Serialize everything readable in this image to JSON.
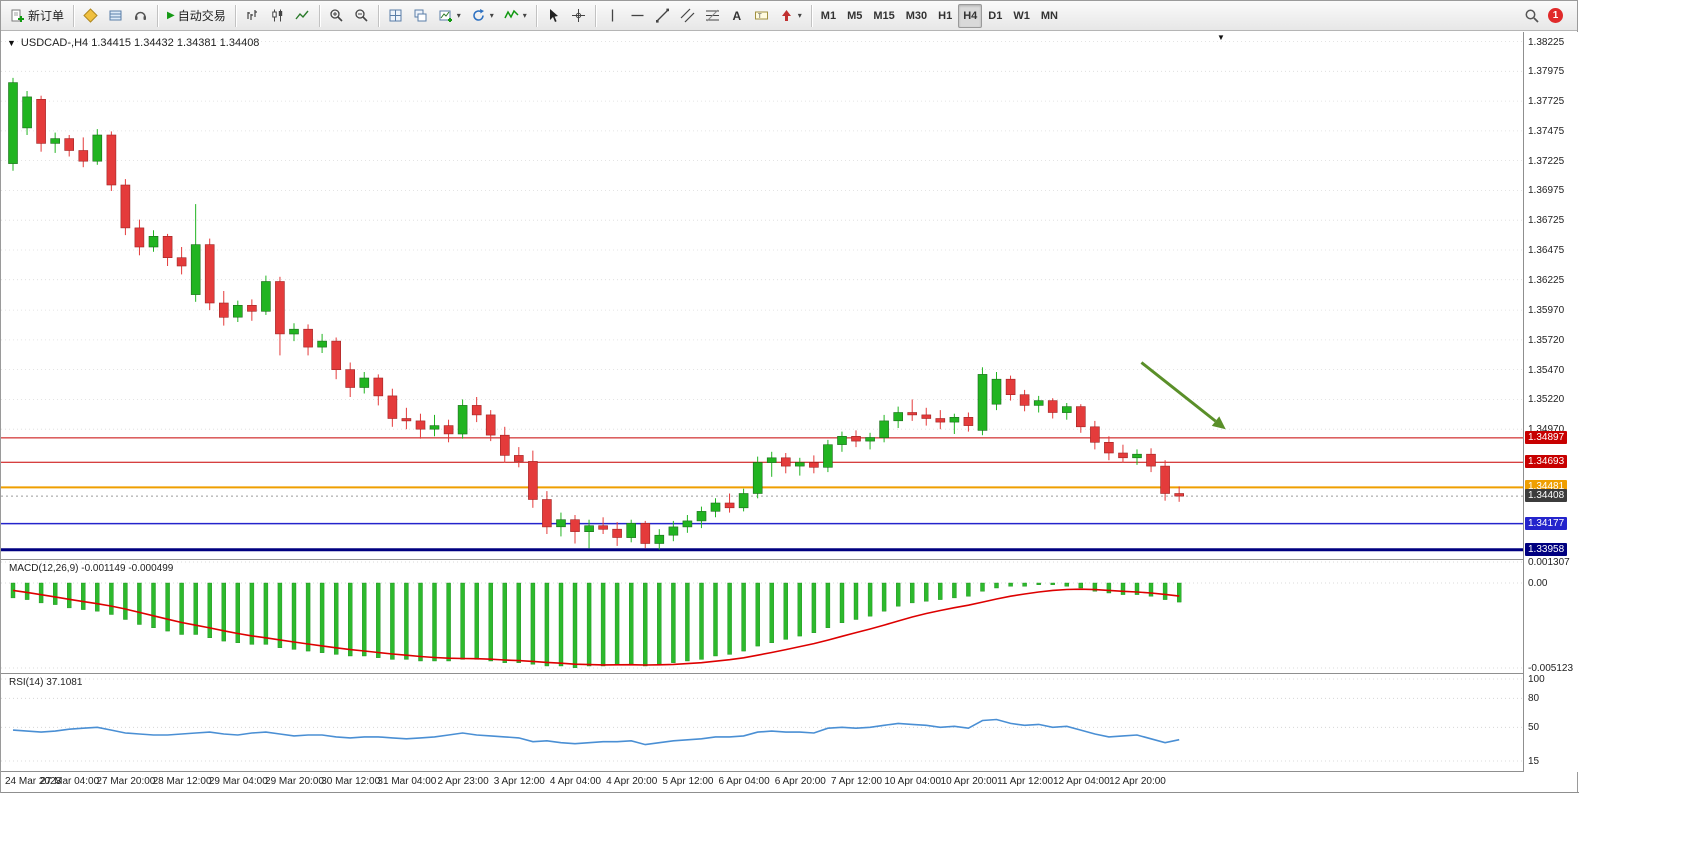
{
  "window": {
    "chart_title": "USDCAD-,H4  1.34415 1.34432 1.34381 1.34408"
  },
  "toolbar": {
    "new_order_label": "新订单",
    "autotrading_label": "自动交易",
    "timeframes": [
      "M1",
      "M5",
      "M15",
      "M30",
      "H1",
      "H4",
      "D1",
      "W1",
      "MN"
    ],
    "active_timeframe": "H4",
    "notification_count": "1"
  },
  "icons": {
    "one_click_trading": "▼",
    "chart_shift_marker": "▼",
    "dropdown_caret": "▾",
    "autotrading_play": "▶",
    "search": "magnifier-glass",
    "text_tool": "A"
  },
  "indicators": {
    "macd_label": "MACD(12,26,9) -0.001149 -0.000499",
    "rsi_label": "RSI(14) 37.1081"
  },
  "price_scale": {
    "ticks": [
      {
        "text": "1.38225",
        "value": 1.38225
      },
      {
        "text": "1.37975",
        "value": 1.37975
      },
      {
        "text": "1.37725",
        "value": 1.37725
      },
      {
        "text": "1.37475",
        "value": 1.37475
      },
      {
        "text": "1.37225",
        "value": 1.37225
      },
      {
        "text": "1.36975",
        "value": 1.36975
      },
      {
        "text": "1.36725",
        "value": 1.36725
      },
      {
        "text": "1.36475",
        "value": 1.36475
      },
      {
        "text": "1.36225",
        "value": 1.36225
      },
      {
        "text": "1.35970",
        "value": 1.3597
      },
      {
        "text": "1.35720",
        "value": 1.3572
      },
      {
        "text": "1.35470",
        "value": 1.3547
      },
      {
        "text": "1.35220",
        "value": 1.3522
      },
      {
        "text": "1.34970",
        "value": 1.3497
      }
    ],
    "line_labels": [
      {
        "text": "1.34897",
        "value": 1.34897,
        "color": "#c80000"
      },
      {
        "text": "1.34693",
        "value": 1.34693,
        "color": "#c80000"
      },
      {
        "text": "1.34481",
        "value": 1.34481,
        "color": "#ef9f00"
      },
      {
        "text": "1.34408",
        "value": 1.34408,
        "color": "#3c3c3c"
      },
      {
        "text": "1.34177",
        "value": 1.34177,
        "color": "#2424cc"
      },
      {
        "text": "1.33958",
        "value": 1.33958,
        "color": "#000080"
      }
    ]
  },
  "time_axis": {
    "labels": [
      "24 Mar 2023",
      "27 Mar 04:00",
      "27 Mar 20:00",
      "28 Mar 12:00",
      "29 Mar 04:00",
      "29 Mar 20:00",
      "30 Mar 12:00",
      "31 Mar 04:00",
      "2 Apr 23:00",
      "3 Apr 12:00",
      "4 Apr 04:00",
      "4 Apr 20:00",
      "5 Apr 12:00",
      "6 Apr 04:00",
      "6 Apr 20:00",
      "7 Apr 12:00",
      "10 Apr 04:00",
      "10 Apr 20:00",
      "11 Apr 12:00",
      "12 Apr 04:00",
      "12 Apr 20:00"
    ]
  },
  "chart_data": {
    "type": "candlestick",
    "symbol": "USDCAD-",
    "timeframe": "H4",
    "ohlc_display": {
      "open": "1.34415",
      "high": "1.34432",
      "low": "1.34381",
      "close": "1.34408"
    },
    "y_range": [
      1.3388,
      1.38305
    ],
    "colors": {
      "up": "#21b421",
      "down": "#e43b3b",
      "wick": "#1c6b1c",
      "wick_down": "#9e2424",
      "macd_histogram": "#2db92d",
      "macd_signal": "#dd0000",
      "rsi_line": "#4a8fd4",
      "grid": "#dcdcdc",
      "arrow": "#5a8f29"
    },
    "candles": [
      [
        1.372,
        1.3792,
        1.3714,
        1.3788
      ],
      [
        1.375,
        1.3781,
        1.3744,
        1.3776
      ],
      [
        1.3774,
        1.3777,
        1.373,
        1.3737
      ],
      [
        1.3737,
        1.3746,
        1.3729,
        1.3741
      ],
      [
        1.3741,
        1.3744,
        1.3726,
        1.3731
      ],
      [
        1.3731,
        1.3742,
        1.3717,
        1.3722
      ],
      [
        1.3722,
        1.3749,
        1.3719,
        1.3744
      ],
      [
        1.3744,
        1.3747,
        1.3697,
        1.3702
      ],
      [
        1.3702,
        1.3707,
        1.366,
        1.3666
      ],
      [
        1.3666,
        1.3673,
        1.3643,
        1.365
      ],
      [
        1.365,
        1.3664,
        1.3646,
        1.3659
      ],
      [
        1.3659,
        1.3661,
        1.3634,
        1.3641
      ],
      [
        1.3641,
        1.365,
        1.3627,
        1.3634
      ],
      [
        1.361,
        1.3686,
        1.3604,
        1.3652
      ],
      [
        1.3652,
        1.3657,
        1.3597,
        1.3603
      ],
      [
        1.3603,
        1.3613,
        1.3584,
        1.3591
      ],
      [
        1.3591,
        1.3605,
        1.3587,
        1.3601
      ],
      [
        1.3601,
        1.3606,
        1.3588,
        1.3596
      ],
      [
        1.3596,
        1.3626,
        1.3593,
        1.3621
      ],
      [
        1.3621,
        1.3625,
        1.3559,
        1.3577
      ],
      [
        1.3577,
        1.3586,
        1.3571,
        1.3581
      ],
      [
        1.3581,
        1.3585,
        1.3559,
        1.3566
      ],
      [
        1.3566,
        1.3577,
        1.3561,
        1.3571
      ],
      [
        1.3571,
        1.3574,
        1.3539,
        1.3547
      ],
      [
        1.3547,
        1.3553,
        1.3524,
        1.3532
      ],
      [
        1.3532,
        1.3545,
        1.3527,
        1.354
      ],
      [
        1.354,
        1.3543,
        1.3517,
        1.3525
      ],
      [
        1.3525,
        1.3531,
        1.3499,
        1.3506
      ],
      [
        1.3506,
        1.3515,
        1.3497,
        1.3504
      ],
      [
        1.3504,
        1.351,
        1.3489,
        1.3497
      ],
      [
        1.3497,
        1.3509,
        1.3491,
        1.35
      ],
      [
        1.35,
        1.3505,
        1.3486,
        1.3493
      ],
      [
        1.3493,
        1.3522,
        1.3489,
        1.3517
      ],
      [
        1.3517,
        1.3524,
        1.3503,
        1.3509
      ],
      [
        1.3509,
        1.3513,
        1.3487,
        1.3492
      ],
      [
        1.3492,
        1.3499,
        1.3469,
        1.3475
      ],
      [
        1.3475,
        1.3482,
        1.3465,
        1.347
      ],
      [
        1.347,
        1.3479,
        1.3431,
        1.3438
      ],
      [
        1.3438,
        1.3445,
        1.3409,
        1.3415
      ],
      [
        1.3415,
        1.3427,
        1.3407,
        1.3421
      ],
      [
        1.3421,
        1.3425,
        1.3401,
        1.3411
      ],
      [
        1.3411,
        1.3421,
        1.3397,
        1.3416
      ],
      [
        1.3416,
        1.3423,
        1.3409,
        1.3413
      ],
      [
        1.3413,
        1.3419,
        1.3399,
        1.3406
      ],
      [
        1.3406,
        1.3421,
        1.3402,
        1.3418
      ],
      [
        1.3418,
        1.342,
        1.3397,
        1.3401
      ],
      [
        1.3401,
        1.3413,
        1.3396,
        1.3408
      ],
      [
        1.3408,
        1.342,
        1.3403,
        1.3415
      ],
      [
        1.3415,
        1.3425,
        1.341,
        1.342
      ],
      [
        1.342,
        1.3432,
        1.3414,
        1.3428
      ],
      [
        1.3428,
        1.3439,
        1.3423,
        1.3435
      ],
      [
        1.3435,
        1.3443,
        1.3427,
        1.3431
      ],
      [
        1.3431,
        1.3447,
        1.3428,
        1.3443
      ],
      [
        1.3443,
        1.3474,
        1.3439,
        1.3469
      ],
      [
        1.3469,
        1.3478,
        1.3457,
        1.3473
      ],
      [
        1.3473,
        1.3477,
        1.346,
        1.3466
      ],
      [
        1.3466,
        1.3473,
        1.3458,
        1.3469
      ],
      [
        1.3469,
        1.3475,
        1.346,
        1.3465
      ],
      [
        1.3465,
        1.3488,
        1.3461,
        1.3484
      ],
      [
        1.3484,
        1.3495,
        1.3478,
        1.3491
      ],
      [
        1.3491,
        1.3496,
        1.3482,
        1.3487
      ],
      [
        1.3487,
        1.3494,
        1.348,
        1.349
      ],
      [
        1.349,
        1.3509,
        1.3486,
        1.3504
      ],
      [
        1.3504,
        1.3516,
        1.3498,
        1.3511
      ],
      [
        1.3511,
        1.3522,
        1.3504,
        1.3509
      ],
      [
        1.3509,
        1.3515,
        1.35,
        1.3506
      ],
      [
        1.3506,
        1.3513,
        1.3497,
        1.3503
      ],
      [
        1.3503,
        1.351,
        1.3493,
        1.3507
      ],
      [
        1.3507,
        1.3511,
        1.3495,
        1.35
      ],
      [
        1.3496,
        1.3549,
        1.3492,
        1.3543
      ],
      [
        1.3518,
        1.3545,
        1.3513,
        1.3539
      ],
      [
        1.3539,
        1.3542,
        1.3521,
        1.3526
      ],
      [
        1.3526,
        1.353,
        1.3512,
        1.3517
      ],
      [
        1.3517,
        1.3525,
        1.3511,
        1.3521
      ],
      [
        1.3521,
        1.3523,
        1.3506,
        1.3511
      ],
      [
        1.3511,
        1.3519,
        1.3505,
        1.3516
      ],
      [
        1.3516,
        1.3518,
        1.3494,
        1.3499
      ],
      [
        1.3499,
        1.3504,
        1.348,
        1.3486
      ],
      [
        1.3486,
        1.3491,
        1.3471,
        1.3477
      ],
      [
        1.3477,
        1.3484,
        1.3469,
        1.3473
      ],
      [
        1.3473,
        1.348,
        1.3467,
        1.3476
      ],
      [
        1.3476,
        1.3481,
        1.3461,
        1.3466
      ],
      [
        1.3466,
        1.3471,
        1.3437,
        1.3443
      ],
      [
        1.3443,
        1.3449,
        1.3436,
        1.34408
      ]
    ],
    "hlines": [
      {
        "price": 1.34897,
        "color": "#c80000",
        "width": 1
      },
      {
        "price": 1.34693,
        "color": "#c80000",
        "width": 1
      },
      {
        "price": 1.34481,
        "color": "#ef9f00",
        "width": 2
      },
      {
        "price": 1.34177,
        "color": "#2424cc",
        "width": 1.5
      },
      {
        "price": 1.33958,
        "color": "#000080",
        "width": 3
      }
    ],
    "current_price": 1.34408,
    "annotation_arrow": {
      "x1_index": 80.6,
      "y1_price": 1.3553,
      "x2_index": 86.6,
      "y2_price": 1.3497,
      "color": "#5a8f29"
    },
    "macd": {
      "params": "12,26,9",
      "main_last": -0.001149,
      "signal_last": -0.000499,
      "scale_labels": [
        {
          "text": "0.001307",
          "value": 0.001307
        },
        {
          "text": "0.00",
          "value": 0
        },
        {
          "text": "-0.005123",
          "value": -0.005123
        }
      ],
      "values": [
        -0.0009,
        -0.001,
        -0.0012,
        -0.0013,
        -0.0015,
        -0.0016,
        -0.0017,
        -0.0019,
        -0.0022,
        -0.0025,
        -0.0027,
        -0.0029,
        -0.0031,
        -0.0031,
        -0.0033,
        -0.0035,
        -0.0036,
        -0.0037,
        -0.0037,
        -0.0039,
        -0.004,
        -0.0041,
        -0.0042,
        -0.0043,
        -0.0044,
        -0.0044,
        -0.0045,
        -0.0046,
        -0.0046,
        -0.0047,
        -0.0047,
        -0.0047,
        -0.0046,
        -0.0046,
        -0.0047,
        -0.0048,
        -0.0048,
        -0.0049,
        -0.005,
        -0.005,
        -0.0051,
        -0.005,
        -0.005,
        -0.0049,
        -0.0049,
        -0.005,
        -0.0049,
        -0.0048,
        -0.0047,
        -0.0046,
        -0.0044,
        -0.0043,
        -0.0041,
        -0.0038,
        -0.0036,
        -0.0034,
        -0.0032,
        -0.003,
        -0.0027,
        -0.0024,
        -0.0022,
        -0.002,
        -0.0017,
        -0.0014,
        -0.0012,
        -0.0011,
        -0.001,
        -0.0009,
        -0.0008,
        -0.0005,
        -0.0003,
        -0.0002,
        -0.0002,
        -0.0001,
        -0.0001,
        -0.0002,
        -0.0003,
        -0.0005,
        -0.0006,
        -0.0007,
        -0.0007,
        -0.0008,
        -0.001,
        -0.001149
      ]
    },
    "rsi": {
      "period": 14,
      "last": 37.1081,
      "levels": [
        {
          "text": "100",
          "value": 100
        },
        {
          "text": "80",
          "value": 80
        },
        {
          "text": "50",
          "value": 50
        },
        {
          "text": "15",
          "value": 15
        }
      ],
      "values": [
        47,
        46,
        45,
        46,
        48,
        49,
        50,
        47,
        44,
        43,
        42,
        42,
        43,
        44,
        45,
        43,
        42,
        44,
        45,
        43,
        41,
        42,
        42,
        40,
        39,
        40,
        40,
        39,
        38,
        39,
        40,
        42,
        44,
        42,
        41,
        40,
        39,
        35,
        36,
        34,
        33,
        34,
        35,
        35,
        36,
        32,
        34,
        36,
        37,
        38,
        40,
        40,
        41,
        45,
        46,
        45,
        45,
        44,
        49,
        50,
        49,
        50,
        52,
        54,
        53,
        52,
        50,
        51,
        49,
        57,
        58,
        54,
        52,
        53,
        50,
        51,
        47,
        43,
        40,
        41,
        42,
        38,
        34,
        37.1
      ]
    }
  }
}
